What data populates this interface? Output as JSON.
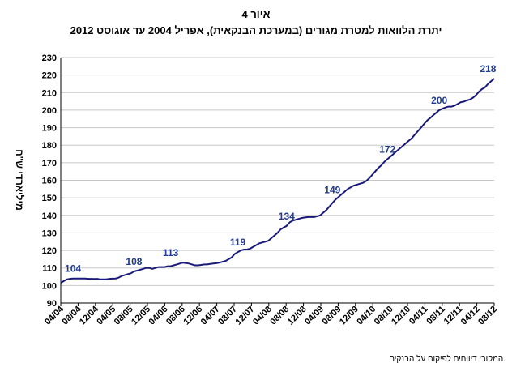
{
  "header": {
    "figure_label": "איור 4",
    "title": "יתרת הלוואות למטרת מגורים (במערכת הבנקאית), אפריל 2004 עד אוגוסט 2012"
  },
  "footer": {
    "source": "המקור: דיווחים לפיקוח על הבנקים."
  },
  "chart_data": {
    "type": "line",
    "title": "יתרת הלוואות למטרת מגורים (במערכת הבנקאית), אפריל 2004 עד אוגוסט 2012",
    "ylabel": "מיליארדי ש\"ח",
    "xlabel": "",
    "ylim": [
      90,
      230
    ],
    "yticks": [
      90,
      100,
      110,
      120,
      130,
      140,
      150,
      160,
      170,
      180,
      190,
      200,
      210,
      220,
      230
    ],
    "grid": true,
    "legend": "none",
    "line_color": "#1a1a7a",
    "label_color": "#1f3a8f",
    "x_ticks": [
      "04/04",
      "08/04",
      "12/04",
      "04/05",
      "08/05",
      "12/05",
      "04/06",
      "08/06",
      "12/06",
      "04/07",
      "08/07",
      "12/07",
      "04/08",
      "08/08",
      "12/08",
      "04/09",
      "08/09",
      "12/09",
      "04/10",
      "08/10",
      "12/10",
      "04/11",
      "08/11",
      "12/11",
      "04/12",
      "08/12"
    ],
    "series": [
      {
        "values": [
          101.5,
          102.5,
          103.5,
          103.8,
          104,
          104,
          104,
          104,
          104,
          103.8,
          103.8,
          103.7,
          103.8,
          103.5,
          103.5,
          103.6,
          103.8,
          103.9,
          104,
          104.5,
          105.5,
          106,
          106.5,
          107,
          108,
          108.5,
          109,
          109.5,
          110,
          110,
          109.5,
          110,
          110.5,
          110.5,
          110.5,
          111,
          111,
          111.5,
          112,
          112.5,
          113,
          112.8,
          112.5,
          112,
          111.5,
          111.5,
          111.7,
          112,
          112,
          112.3,
          112.5,
          112.7,
          113,
          113.5,
          114,
          115,
          116,
          118,
          119,
          120,
          120.5,
          120.5,
          121,
          122,
          123,
          124,
          124.5,
          125,
          125.5,
          127,
          128.5,
          130,
          132,
          133,
          134,
          136,
          137,
          137.5,
          138,
          138.5,
          138.8,
          139,
          139,
          139,
          139.5,
          140,
          141.5,
          143,
          145,
          147,
          149,
          150.5,
          152,
          153.5,
          155,
          156,
          157,
          157.5,
          158,
          158.5,
          159.5,
          161,
          163,
          165,
          167,
          168.5,
          170.5,
          172,
          173.5,
          175,
          176.5,
          178,
          179.5,
          181,
          182.5,
          184,
          186,
          188,
          190,
          192,
          194,
          195.5,
          197,
          198.5,
          200,
          200.8,
          201.5,
          202,
          202,
          202.5,
          203.5,
          204.5,
          204.8,
          205.5,
          206,
          207,
          208.5,
          210.5,
          212,
          213,
          215,
          216.5,
          218
        ]
      }
    ],
    "annotations": [
      {
        "x": 4,
        "y": 104,
        "label": "104"
      },
      {
        "x": 24,
        "y": 108,
        "label": "108"
      },
      {
        "x": 36,
        "y": 113,
        "label": "113"
      },
      {
        "x": 58,
        "y": 119,
        "label": "119"
      },
      {
        "x": 74,
        "y": 134,
        "label": "134"
      },
      {
        "x": 89,
        "y": 149,
        "label": "149"
      },
      {
        "x": 107,
        "y": 172,
        "label": "172"
      },
      {
        "x": 124,
        "y": 200,
        "label": "200"
      },
      {
        "x": 140,
        "y": 218,
        "label": "218"
      }
    ]
  }
}
